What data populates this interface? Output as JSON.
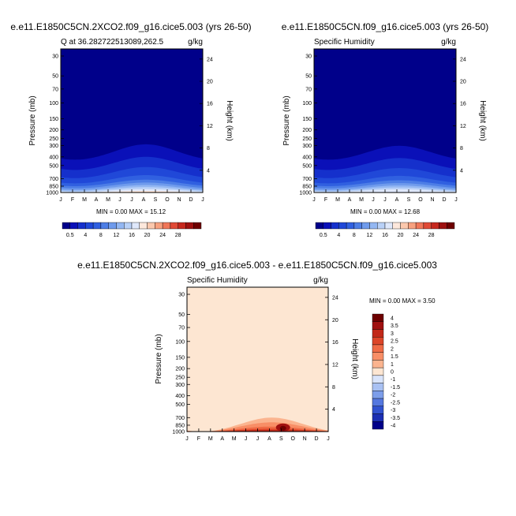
{
  "chart_data": [
    {
      "type": "heatmap",
      "title": "e.e11.E1850C5CN.2XCO2.f09_g16.cice5.003 (yrs 26-50)",
      "subtitle_left": "Q at 36.282722513089,262.5",
      "subtitle_right": "g/kg",
      "ylabel": "Pressure (mb)",
      "ylabel_right": "Height (km)",
      "x_ticks": [
        "J",
        "F",
        "M",
        "A",
        "M",
        "J",
        "J",
        "A",
        "S",
        "O",
        "N",
        "D",
        "J"
      ],
      "y_ticks": [
        "30",
        "50",
        "70",
        "100",
        "150",
        "200",
        "250",
        "300",
        "400",
        "500",
        "700",
        "850",
        "1000"
      ],
      "y_ticks_right": [
        "24",
        "20",
        "16",
        "12",
        "8",
        "4"
      ],
      "stats": "MIN =   0.00 MAX =  15.12",
      "max": 15.12,
      "colorbar": [
        "0.5",
        "4",
        "8",
        "12",
        "16",
        "20",
        "24",
        "28"
      ],
      "contour_levels_g_per_kg": [
        0.5,
        1,
        2,
        3,
        4,
        6,
        8,
        10,
        12,
        14,
        16,
        18,
        20,
        22,
        24,
        26,
        28
      ]
    },
    {
      "type": "heatmap",
      "title": "e.e11.E1850C5CN.f09_g16.cice5.003 (yrs 26-50)",
      "subtitle_left": "Specific Humidity",
      "subtitle_right": "g/kg",
      "ylabel": "Pressure (mb)",
      "ylabel_right": "Height (km)",
      "x_ticks": [
        "J",
        "F",
        "M",
        "A",
        "M",
        "J",
        "J",
        "A",
        "S",
        "O",
        "N",
        "D",
        "J"
      ],
      "y_ticks": [
        "30",
        "50",
        "70",
        "100",
        "150",
        "200",
        "250",
        "300",
        "400",
        "500",
        "700",
        "850",
        "1000"
      ],
      "y_ticks_right": [
        "24",
        "20",
        "16",
        "12",
        "8",
        "4"
      ],
      "stats": "MIN =   0.00 MAX =  12.68",
      "max": 12.68,
      "colorbar": [
        "0.5",
        "4",
        "8",
        "12",
        "16",
        "20",
        "24",
        "28"
      ],
      "contour_levels_g_per_kg": [
        0.5,
        1,
        2,
        3,
        4,
        6,
        8,
        10,
        12,
        14,
        16,
        18,
        20,
        22,
        24,
        26,
        28
      ]
    },
    {
      "type": "heatmap",
      "title": "e.e11.E1850C5CN.2XCO2.f09_g16.cice5.003 - e.e11.E1850C5CN.f09_g16.cice5.003",
      "subtitle_left": "Specific Humidity",
      "subtitle_right": "g/kg",
      "ylabel": "Pressure (mb)",
      "ylabel_right": "Height (km)",
      "x_ticks": [
        "J",
        "F",
        "M",
        "A",
        "M",
        "J",
        "J",
        "A",
        "S",
        "O",
        "N",
        "D",
        "J"
      ],
      "y_ticks": [
        "30",
        "50",
        "70",
        "100",
        "150",
        "200",
        "250",
        "300",
        "400",
        "500",
        "700",
        "850",
        "1000"
      ],
      "y_ticks_right": [
        "24",
        "20",
        "16",
        "12",
        "8",
        "4"
      ],
      "stats": "MIN =   0.00 MAX =   3.50",
      "max": 3.5,
      "colorbar": [
        "4",
        "3.5",
        "3",
        "2.5",
        "2",
        "1.5",
        "1",
        "0",
        "-1",
        "-1.5",
        "-2",
        "-2.5",
        "-3",
        "-3.5",
        "-4"
      ]
    }
  ],
  "colors": {
    "seq_scale": [
      "#00008a",
      "#0a10b8",
      "#1530cc",
      "#2048d8",
      "#3060e0",
      "#4d7ee6",
      "#6f9bec",
      "#93b7f2",
      "#b9d1f7",
      "#dfe8fb",
      "#fde8dc",
      "#fbc8ad",
      "#f7a17f",
      "#f07658",
      "#e04a36",
      "#c6281e",
      "#9e1110",
      "#6e0000"
    ],
    "div_scale": [
      "#6e0000",
      "#a01010",
      "#c22818",
      "#dc4528",
      "#ef6a45",
      "#f88e66",
      "#fbb48f",
      "#fde6d2",
      "#d9e4fb",
      "#a9c1f3",
      "#7d9eea",
      "#5578df",
      "#3152cf",
      "#1b2fb3",
      "#00008a"
    ]
  }
}
